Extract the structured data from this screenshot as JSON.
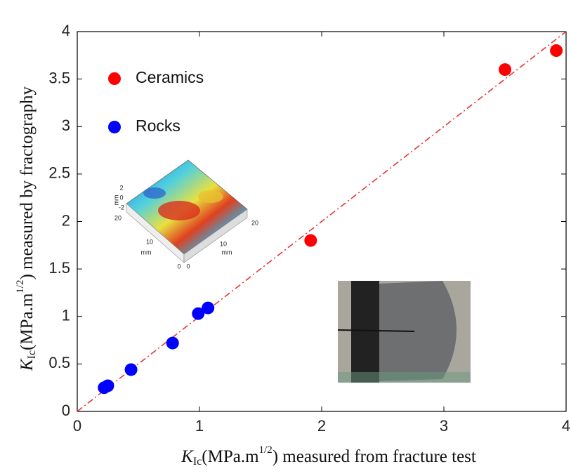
{
  "chart_data": {
    "type": "scatter",
    "xlabel": {
      "symbol": "K",
      "subscript": "Ic",
      "unit": "(MPa.m",
      "exponent": "1/2",
      "rest": ") measured from fracture test"
    },
    "ylabel": {
      "symbol": "K",
      "subscript": "Ic",
      "unit": "(MPa.m",
      "exponent": "1/2",
      "rest": ") measured by fractography"
    },
    "xlim": [
      0,
      4
    ],
    "ylim": [
      0,
      4
    ],
    "xticks": [
      0,
      1,
      2,
      3,
      4
    ],
    "yticks": [
      0,
      0.5,
      1,
      1.5,
      2,
      2.5,
      3,
      3.5,
      4
    ],
    "grid": false,
    "legend": "upper left",
    "diagonal": {
      "color": "#e8343a",
      "style": "dashdot"
    },
    "series": [
      {
        "name": "Ceramics",
        "color": "#ff0000",
        "x": [
          1.91,
          3.5,
          3.92
        ],
        "values": [
          1.8,
          3.6,
          3.8
        ]
      },
      {
        "name": "Rocks",
        "color": "#0000ff",
        "x": [
          0.22,
          0.25,
          0.44,
          0.78,
          0.99,
          1.07
        ],
        "values": [
          0.25,
          0.27,
          0.44,
          0.72,
          1.03,
          1.09
        ]
      }
    ],
    "inset_labels": [
      "mm",
      "2",
      "0",
      "-2",
      "20",
      "10",
      "0",
      "mm",
      "0",
      "10",
      "mm",
      "20"
    ]
  }
}
